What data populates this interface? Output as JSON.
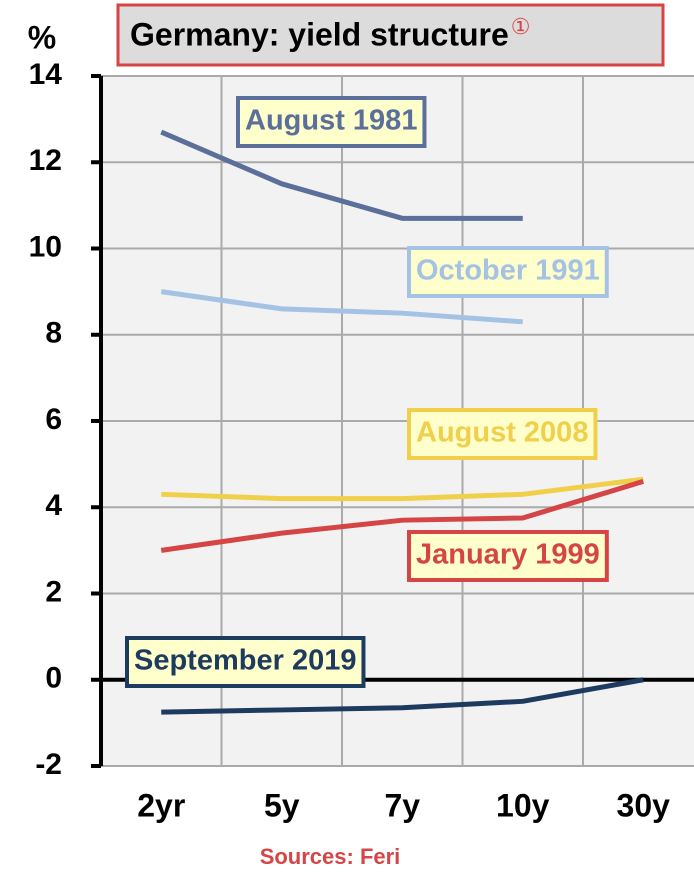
{
  "chart_data": {
    "type": "line",
    "title": "Germany: yield structure",
    "title_marker": "①",
    "y_label": "%",
    "source": "Sources: Feri",
    "categories": [
      "2yr",
      "5y",
      "7y",
      "10y",
      "30y"
    ],
    "series": [
      {
        "name": "August 1981",
        "color": "#5a6f9a",
        "values": [
          12.7,
          11.5,
          10.7,
          10.7,
          null
        ]
      },
      {
        "name": "October 1991",
        "color": "#a4c2e4",
        "values": [
          9.0,
          8.6,
          8.5,
          8.3,
          null
        ]
      },
      {
        "name": "August 2008",
        "color": "#f0cf4a",
        "values": [
          4.3,
          4.2,
          4.2,
          4.3,
          4.65
        ]
      },
      {
        "name": "January 1999",
        "color": "#d64545",
        "values": [
          3.0,
          3.4,
          3.7,
          3.75,
          4.6
        ]
      },
      {
        "name": "September 2019",
        "color": "#1d3a5f",
        "values": [
          -0.75,
          -0.7,
          -0.65,
          -0.5,
          0.0
        ]
      }
    ],
    "ylim": [
      -2,
      14
    ],
    "yticks": [
      -2,
      0,
      2,
      4,
      6,
      8,
      10,
      12,
      14
    ],
    "grid": true
  }
}
